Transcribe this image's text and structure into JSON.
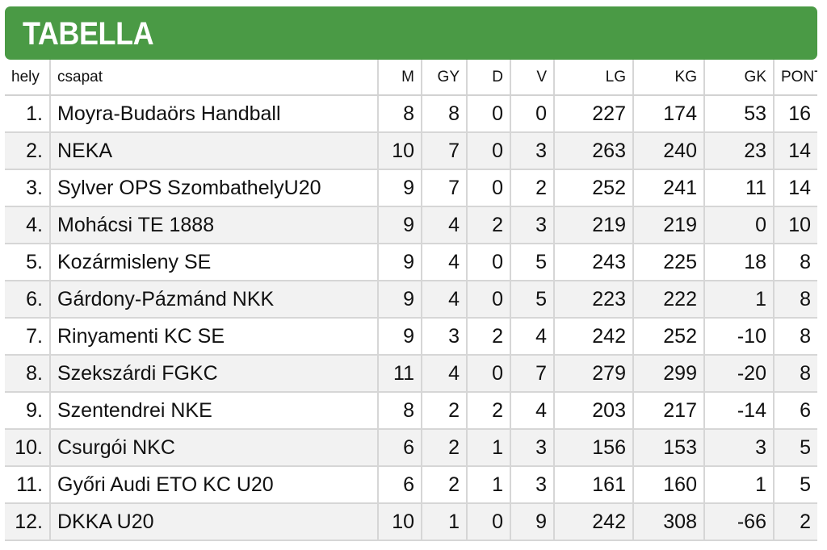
{
  "title": "TABELLA",
  "columns": {
    "hely": "hely",
    "csapat": "csapat",
    "m": "M",
    "gy": "GY",
    "d": "D",
    "v": "V",
    "lg": "LG",
    "kg": "KG",
    "gk": "GK",
    "pont": "PONT"
  },
  "rows": [
    {
      "hely": "1.",
      "csapat": "Moyra-Budaörs Handball",
      "m": "8",
      "gy": "8",
      "d": "0",
      "v": "0",
      "lg": "227",
      "kg": "174",
      "gk": "53",
      "pont": "16"
    },
    {
      "hely": "2.",
      "csapat": "NEKA",
      "m": "10",
      "gy": "7",
      "d": "0",
      "v": "3",
      "lg": "263",
      "kg": "240",
      "gk": "23",
      "pont": "14"
    },
    {
      "hely": "3.",
      "csapat": "Sylver OPS SzombathelyU20",
      "m": "9",
      "gy": "7",
      "d": "0",
      "v": "2",
      "lg": "252",
      "kg": "241",
      "gk": "11",
      "pont": "14"
    },
    {
      "hely": "4.",
      "csapat": "Mohácsi TE 1888",
      "m": "9",
      "gy": "4",
      "d": "2",
      "v": "3",
      "lg": "219",
      "kg": "219",
      "gk": "0",
      "pont": "10"
    },
    {
      "hely": "5.",
      "csapat": "Kozármisleny SE",
      "m": "9",
      "gy": "4",
      "d": "0",
      "v": "5",
      "lg": "243",
      "kg": "225",
      "gk": "18",
      "pont": "8"
    },
    {
      "hely": "6.",
      "csapat": "Gárdony-Pázmánd NKK",
      "m": "9",
      "gy": "4",
      "d": "0",
      "v": "5",
      "lg": "223",
      "kg": "222",
      "gk": "1",
      "pont": "8"
    },
    {
      "hely": "7.",
      "csapat": "Rinyamenti KC SE",
      "m": "9",
      "gy": "3",
      "d": "2",
      "v": "4",
      "lg": "242",
      "kg": "252",
      "gk": "-10",
      "pont": "8"
    },
    {
      "hely": "8.",
      "csapat": "Szekszárdi FGKC",
      "m": "11",
      "gy": "4",
      "d": "0",
      "v": "7",
      "lg": "279",
      "kg": "299",
      "gk": "-20",
      "pont": "8"
    },
    {
      "hely": "9.",
      "csapat": "Szentendrei NKE",
      "m": "8",
      "gy": "2",
      "d": "2",
      "v": "4",
      "lg": "203",
      "kg": "217",
      "gk": "-14",
      "pont": "6"
    },
    {
      "hely": "10.",
      "csapat": "Csurgói NKC",
      "m": "6",
      "gy": "2",
      "d": "1",
      "v": "3",
      "lg": "156",
      "kg": "153",
      "gk": "3",
      "pont": "5"
    },
    {
      "hely": "11.",
      "csapat": "Győri Audi ETO KC U20",
      "m": "6",
      "gy": "2",
      "d": "1",
      "v": "3",
      "lg": "161",
      "kg": "160",
      "gk": "1",
      "pont": "5"
    },
    {
      "hely": "12.",
      "csapat": "DKKA U20",
      "m": "10",
      "gy": "1",
      "d": "0",
      "v": "9",
      "lg": "242",
      "kg": "308",
      "gk": "-66",
      "pont": "2"
    }
  ],
  "colors": {
    "header_bg": "#4a9a45",
    "header_text": "#ffffff",
    "row_alt_bg": "#f2f2f2",
    "grid_line": "#d6d6d6"
  }
}
